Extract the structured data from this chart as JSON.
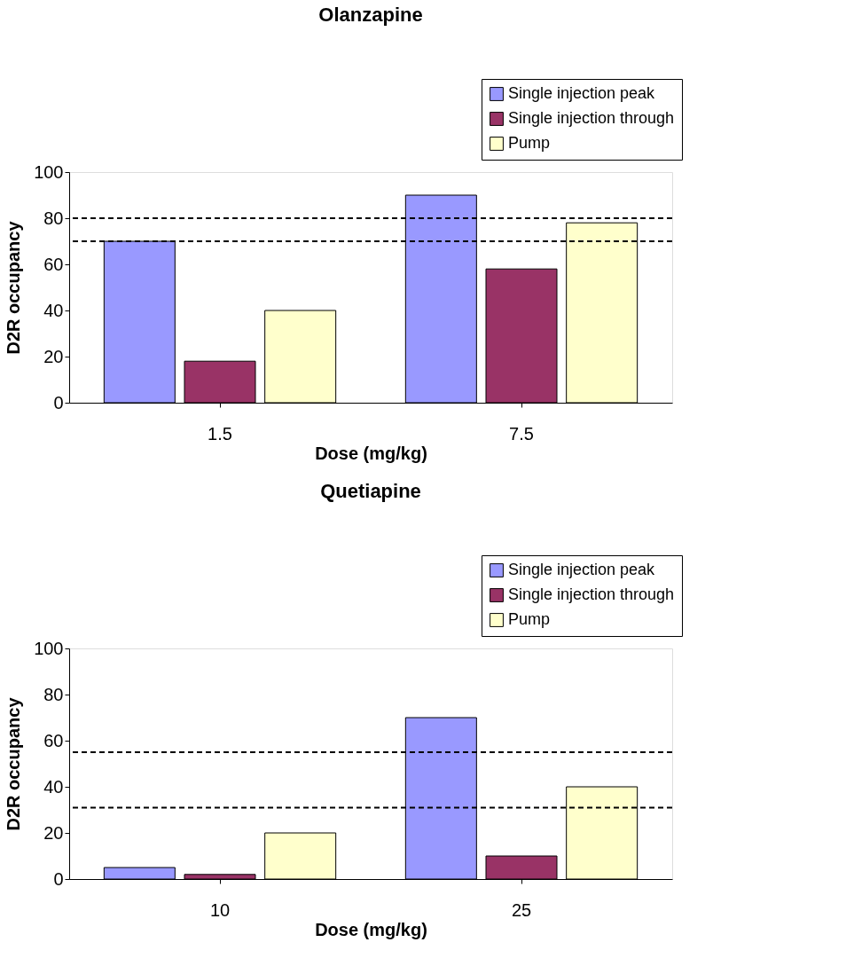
{
  "chart_data": [
    {
      "type": "bar",
      "title": "Olanzapine",
      "xlabel": "Dose (mg/kg)",
      "ylabel": "D2R occupancy",
      "categories": [
        "1.5",
        "7.5"
      ],
      "series": [
        {
          "name": "Single injection peak",
          "color": "#9999ff",
          "values": [
            70,
            90
          ]
        },
        {
          "name": "Single injection through",
          "color": "#993366",
          "values": [
            18,
            58
          ]
        },
        {
          "name": "Pump",
          "color": "#ffffcc",
          "values": [
            40,
            78
          ]
        }
      ],
      "ylim": [
        0,
        100
      ],
      "yticks": [
        0,
        20,
        40,
        60,
        80,
        100
      ],
      "grid": false,
      "legend": "top right",
      "ref_lines": [
        {
          "axis": "y",
          "value": 80,
          "color": "#000000",
          "line_style": "dashed"
        },
        {
          "axis": "y",
          "value": 70,
          "color": "#000000",
          "line_style": "dashed"
        }
      ]
    },
    {
      "type": "bar",
      "title": "Quetiapine",
      "xlabel": "Dose (mg/kg)",
      "ylabel": "D2R occupancy",
      "categories": [
        "10",
        "25"
      ],
      "series": [
        {
          "name": "Single injection peak",
          "color": "#9999ff",
          "values": [
            5,
            70
          ]
        },
        {
          "name": "Single injection through",
          "color": "#993366",
          "values": [
            2,
            10
          ]
        },
        {
          "name": "Pump",
          "color": "#ffffcc",
          "values": [
            20,
            40
          ]
        }
      ],
      "ylim": [
        0,
        100
      ],
      "yticks": [
        0,
        20,
        40,
        60,
        80,
        100
      ],
      "grid": false,
      "legend": "top right",
      "ref_lines": [
        {
          "axis": "y",
          "value": 55,
          "color": "#000000",
          "line_style": "dashed"
        },
        {
          "axis": "y",
          "value": 31,
          "color": "#000000",
          "line_style": "dashed"
        }
      ]
    }
  ]
}
